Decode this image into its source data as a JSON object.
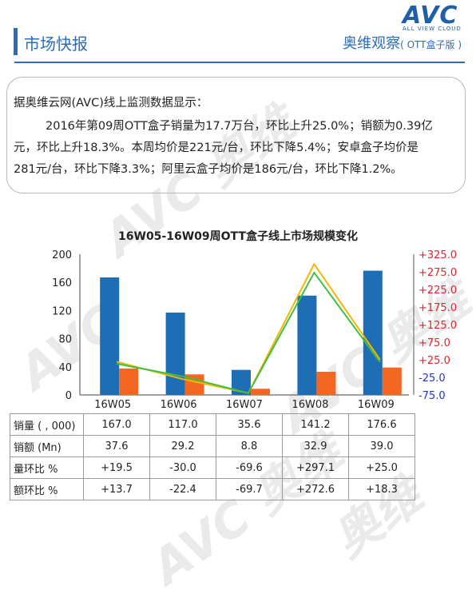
{
  "logo": {
    "main": "AVC",
    "tagline": "ALL VIEW CLOUD"
  },
  "header": {
    "title": "市场快报",
    "series": "奥维观察",
    "series_sub": "( OTT盒子版 )"
  },
  "summary": {
    "heading": "据奥维云网(AVC)线上监测数据显示：",
    "line1": "2016年第09周OTT盒子销量为17.7万台，环比上升25.0%；销额为0.39亿",
    "line2": "元，环比上升18.3%。本周均价是221元/台，环比下降5.4%；安卓盒子均价是",
    "line3": "281元/台，环比下降3.3%；阿里云盒子均价是186元/台，环比下降1.2%。"
  },
  "chart_data": {
    "type": "bar",
    "title": "16W05-16W09周OTT盒子线上市场规模变化",
    "categories": [
      "16W05",
      "16W06",
      "16W07",
      "16W08",
      "16W09"
    ],
    "ylim": [
      0,
      200
    ],
    "yticks": [
      "0",
      "40",
      "80",
      "120",
      "160",
      "200"
    ],
    "y2lim": [
      -75,
      325
    ],
    "y2ticks": [
      "-75.0",
      "-25.0",
      "+25.0",
      "+75.0",
      "+125.0",
      "+175.0",
      "+225.0",
      "+275.0",
      "+325.0"
    ],
    "series": [
      {
        "name": "销量 ( , 000)",
        "kind": "bar",
        "axis": "left",
        "color": "#1e6eb5",
        "values": [
          167.0,
          117.0,
          35.6,
          141.2,
          176.6
        ]
      },
      {
        "name": "销额 (Mn)",
        "kind": "bar",
        "axis": "left",
        "color": "#f26722",
        "values": [
          37.6,
          29.2,
          8.8,
          32.9,
          39.0
        ]
      },
      {
        "name": "量环比 %",
        "kind": "line",
        "axis": "right",
        "color": "#f2b705",
        "values": [
          19.5,
          -30.0,
          -69.6,
          297.1,
          25.0
        ]
      },
      {
        "name": "额环比 %",
        "kind": "line",
        "axis": "right",
        "color": "#3fbf3f",
        "values": [
          13.7,
          -22.4,
          -69.7,
          272.6,
          18.3
        ]
      }
    ],
    "table": {
      "rows": [
        {
          "label": "销量 ( , 000)",
          "cells": [
            "167.0",
            "117.0",
            "35.6",
            "141.2",
            "176.6"
          ]
        },
        {
          "label": "销额 (Mn)",
          "cells": [
            "37.6",
            "29.2",
            "8.8",
            "32.9",
            "39.0"
          ]
        },
        {
          "label": "量环比 %",
          "cells": [
            "+19.5",
            "-30.0",
            "-69.6",
            "+297.1",
            "+25.0"
          ]
        },
        {
          "label": "额环比 %",
          "cells": [
            "+13.7",
            "-22.4",
            "-69.7",
            "+272.6",
            "+18.3"
          ]
        }
      ]
    }
  }
}
